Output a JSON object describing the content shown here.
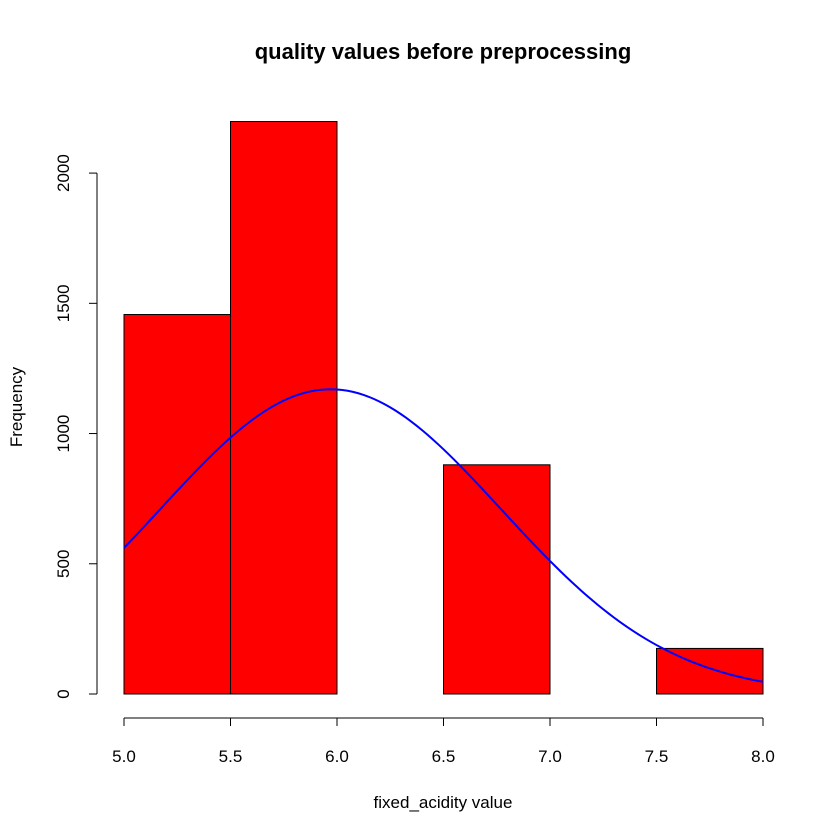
{
  "chart_data": {
    "type": "bar",
    "title": "quality values before preprocessing",
    "xlabel": "fixed_acidity value",
    "ylabel": "Frequency",
    "bins": [
      {
        "from": 5.0,
        "to": 5.5,
        "count": 1457
      },
      {
        "from": 5.5,
        "to": 6.0,
        "count": 2198
      },
      {
        "from": 6.0,
        "to": 6.5,
        "count": 0
      },
      {
        "from": 6.5,
        "to": 7.0,
        "count": 880
      },
      {
        "from": 7.0,
        "to": 7.5,
        "count": 0
      },
      {
        "from": 7.5,
        "to": 8.0,
        "count": 175
      }
    ],
    "xlim": [
      5.0,
      8.0
    ],
    "ylim": [
      0,
      2200
    ],
    "x_ticks": [
      "5.0",
      "5.5",
      "6.0",
      "6.5",
      "7.0",
      "7.5",
      "8.0"
    ],
    "y_ticks": [
      "0",
      "500",
      "1000",
      "1500",
      "2000"
    ],
    "curve": {
      "type": "normal-density",
      "color": "#0000ff",
      "mean": 5.97,
      "sd": 0.8,
      "peak": 1170
    },
    "bar_color": "#ff0000",
    "bar_border": "#000000",
    "grid": false,
    "legend": "none"
  }
}
